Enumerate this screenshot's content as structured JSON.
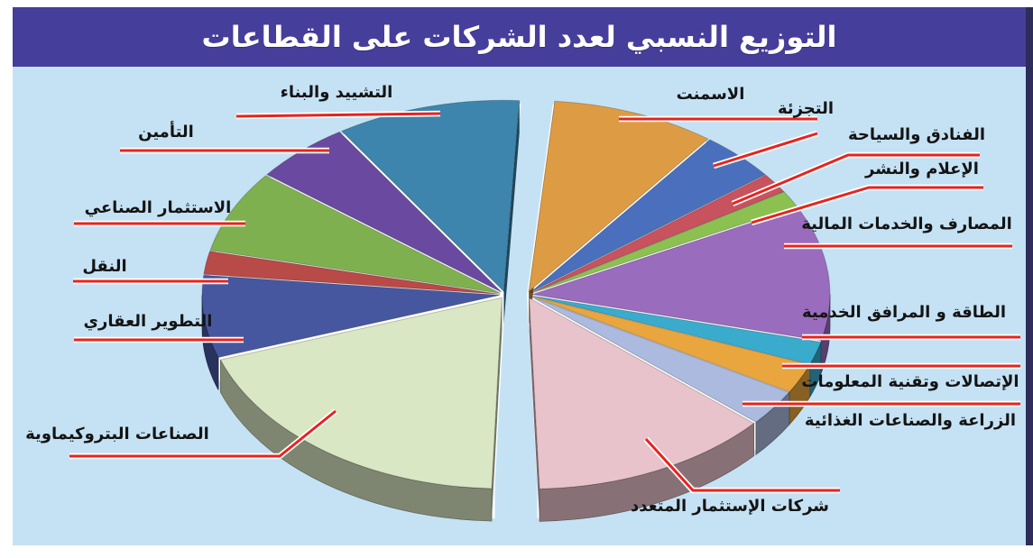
{
  "title": "التوزيع النسبي لعدد الشركات على القطاعات",
  "colors": {
    "page_bg": "#ffffff",
    "title_bar_bg": "#463e9b",
    "title_text": "#ffffff",
    "panel_bg": "#c5e2f4",
    "panel_shadow": "#2d2d5a",
    "leader_line_red": "#e8231e",
    "leader_line_casing": "#ffffff",
    "label_text": "#141414"
  },
  "chart_data": {
    "type": "pie",
    "style": "3d-exploded-two-halves",
    "title": "التوزيع النسبي لعدد الشركات على القطاعات",
    "legend_position": "callout-labels-around-pie",
    "value_labels_shown": false,
    "sectors": [
      {
        "id": "cement",
        "label": "الاسمنت",
        "color": "#dd9c44",
        "start_deg": 5,
        "end_deg": 37,
        "approx_share_pct": 8.9,
        "group": "right"
      },
      {
        "id": "retail",
        "label": "التجزئة",
        "color": "#4a70bd",
        "start_deg": 37,
        "end_deg": 52,
        "approx_share_pct": 4.2,
        "group": "right"
      },
      {
        "id": "hotels-tourism",
        "label": "الفنادق والسياحة",
        "color": "#c9525f",
        "start_deg": 52,
        "end_deg": 58,
        "approx_share_pct": 1.7,
        "group": "right"
      },
      {
        "id": "media-publishing",
        "label": "الإعلام والنشر",
        "color": "#8cc152",
        "start_deg": 58,
        "end_deg": 63,
        "approx_share_pct": 1.4,
        "group": "right"
      },
      {
        "id": "banks-financial",
        "label": "المصارف والخدمات المالية",
        "color": "#9a6cbe",
        "start_deg": 63,
        "end_deg": 104,
        "approx_share_pct": 11.4,
        "group": "right"
      },
      {
        "id": "energy-utilities",
        "label": "الطاقة و المرافق الخدمية",
        "color": "#3aabcd",
        "start_deg": 104,
        "end_deg": 111,
        "approx_share_pct": 1.9,
        "group": "right"
      },
      {
        "id": "telecom-it",
        "label": "الإتصالات وتقنية المعلومات",
        "color": "#e9a63e",
        "start_deg": 111,
        "end_deg": 120,
        "approx_share_pct": 2.5,
        "group": "right"
      },
      {
        "id": "agriculture-food",
        "label": "الزراعة والصناعات الغذائية",
        "color": "#abbade",
        "start_deg": 120,
        "end_deg": 131,
        "approx_share_pct": 3.1,
        "group": "right"
      },
      {
        "id": "multi-investment",
        "label": "شركات الإستثمار المتعدد",
        "color": "#e8c3cb",
        "start_deg": 131,
        "end_deg": 178,
        "approx_share_pct": 13.1,
        "group": "right"
      },
      {
        "id": "petrochemical",
        "label": "الصناعات البتروكيماوية",
        "color": "#d9e7c4",
        "start_deg": 182,
        "end_deg": 251,
        "approx_share_pct": 19.2,
        "group": "left"
      },
      {
        "id": "real-estate",
        "label": "التطوير العقاري",
        "color": "#47579f",
        "start_deg": 251,
        "end_deg": 276,
        "approx_share_pct": 6.9,
        "group": "left"
      },
      {
        "id": "transport",
        "label": "النقل",
        "color": "#b84a48",
        "start_deg": 276,
        "end_deg": 283,
        "approx_share_pct": 1.9,
        "group": "left"
      },
      {
        "id": "industrial-investment",
        "label": "الاستثمار الصناعي",
        "color": "#7fb050",
        "start_deg": 283,
        "end_deg": 308,
        "approx_share_pct": 6.9,
        "group": "left"
      },
      {
        "id": "insurance",
        "label": "التأمين",
        "color": "#6a4aa0",
        "start_deg": 308,
        "end_deg": 327,
        "approx_share_pct": 5.3,
        "group": "left"
      },
      {
        "id": "construction",
        "label": "التشييد والبناء",
        "color": "#3d85ad",
        "start_deg": 327,
        "end_deg": 363,
        "approx_share_pct": 10.0,
        "group": "left"
      }
    ]
  }
}
